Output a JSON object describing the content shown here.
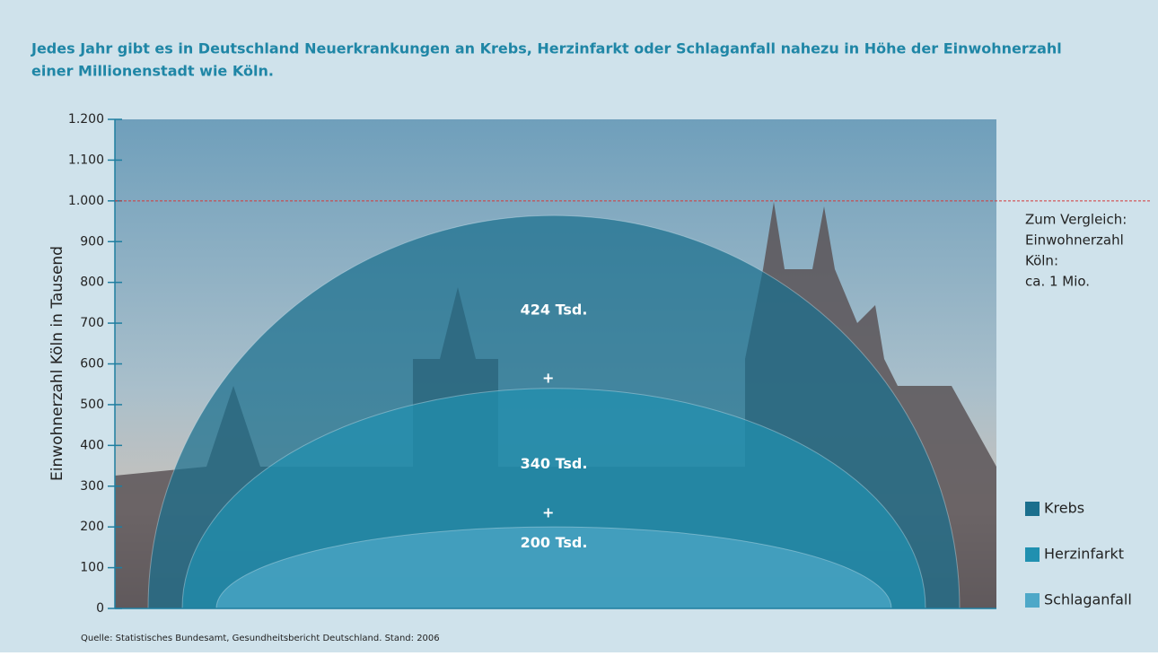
{
  "chart_data": {
    "type": "dome",
    "title": [
      "Jedes Jahr gibt es in Deutschland Neuerkrankungen an Krebs, Herzinfarkt oder Schlaganfall nahezu in Höhe der Einwohnerzahl",
      "einer Millionenstadt wie Köln."
    ],
    "y_label": "Einwohnerzahl Köln in Tausend",
    "ylim": [
      0,
      1200
    ],
    "yticks": [
      0,
      100,
      200,
      300,
      400,
      500,
      600,
      700,
      800,
      900,
      {
        "value": 1000,
        "label": "1.000"
      },
      {
        "value": 1100,
        "label": "1.100"
      },
      {
        "value": 1200,
        "label": "1.200"
      }
    ],
    "series": [
      {
        "name": "Krebs",
        "color": "#1b6f8d",
        "values": [
          424
        ],
        "value_labels": [
          "424 Tsd."
        ]
      },
      {
        "name": "Herzinfarkt",
        "color": "#2090b0",
        "values": [
          340
        ],
        "value_labels": [
          "340 Tsd."
        ]
      },
      {
        "name": "Schlaganfall",
        "color": "#4ea8c8",
        "values": [
          200
        ],
        "value_labels": [
          "200 Tsd."
        ]
      }
    ],
    "operator": "+",
    "reference_line": {
      "value": 1000,
      "color": "#d23a3a",
      "label": [
        "Zum Vergleich:",
        "Einwohnerzahl",
        "Köln:",
        "ca. 1 Mio."
      ]
    },
    "source": "Quelle: Statistisches Bundesamt, Gesundheitsbericht Deutschland. Stand: 2006"
  }
}
